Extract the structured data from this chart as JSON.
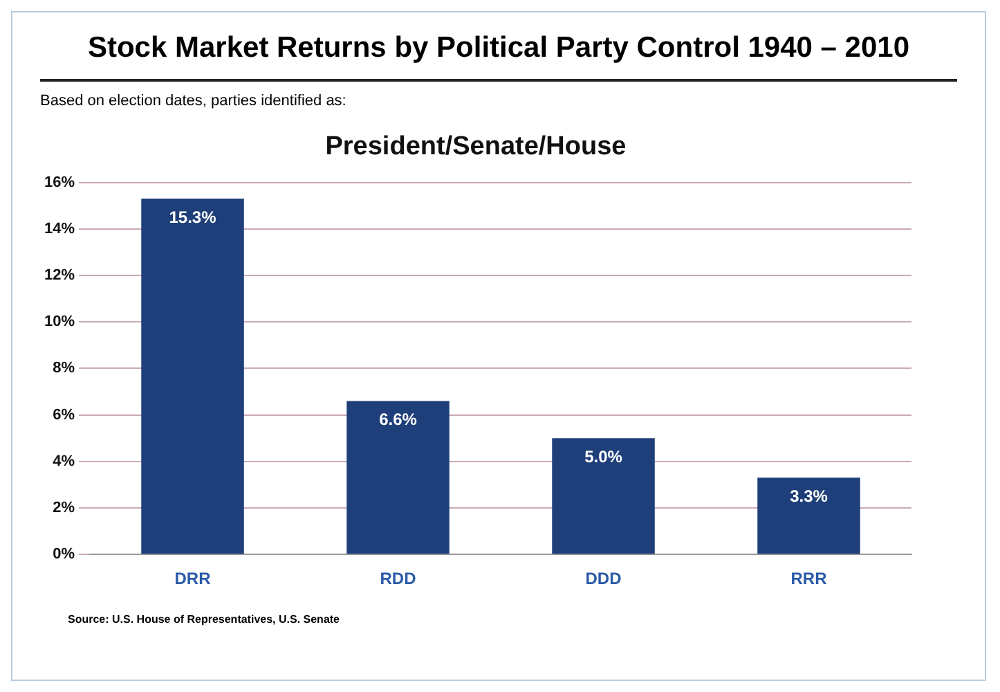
{
  "chart_data": {
    "type": "bar",
    "title": "Stock Market Returns by Political Party Control 1940 – 2010",
    "subtitle": "Based on election dates, parties identified as:",
    "annotations": [
      "President/Senate/House",
      "Source: U.S. House of Representatives, U.S. Senate"
    ],
    "categories": [
      "DRR",
      "RDD",
      "DDD",
      "RRR"
    ],
    "values": [
      15.3,
      6.6,
      5.0,
      3.3
    ],
    "value_labels": [
      "15.3%",
      "6.6%",
      "5.0%",
      "3.3%"
    ],
    "color": "#1f3f7a",
    "ylim": [
      0,
      16
    ],
    "yticks": [
      {
        "value": 0,
        "label": "0%"
      },
      {
        "value": 2,
        "label": "2%"
      },
      {
        "value": 4,
        "label": "4%"
      },
      {
        "value": 6,
        "label": "6%"
      },
      {
        "value": 8,
        "label": "8%"
      },
      {
        "value": 10,
        "label": "10%"
      },
      {
        "value": 12,
        "label": "12%"
      },
      {
        "value": 14,
        "label": "14%"
      },
      {
        "value": 16,
        "label": "16%"
      }
    ],
    "grid": "y",
    "legend": false
  }
}
